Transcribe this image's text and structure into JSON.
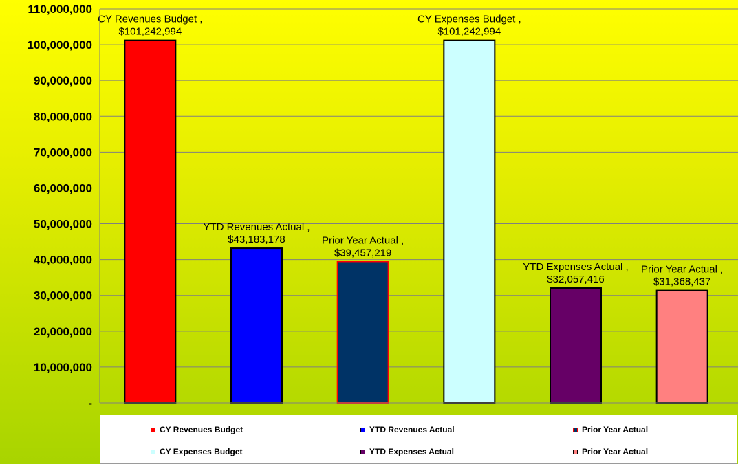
{
  "chart_data": {
    "type": "bar",
    "categories": [
      "CY Revenues Budget",
      "YTD Revenues Actual",
      "Prior Year Actual",
      "CY Expenses Budget",
      "YTD Expenses Actual",
      "Prior Year Actual"
    ],
    "values": [
      101242994,
      43183178,
      39457219,
      101242994,
      32057416,
      31368437
    ],
    "data_labels": [
      [
        "CY Revenues Budget ,",
        "$101,242,994"
      ],
      [
        "YTD Revenues Actual ,",
        "$43,183,178"
      ],
      [
        "Prior Year Actual ,",
        "$39,457,219"
      ],
      [
        "CY Expenses Budget ,",
        "$101,242,994"
      ],
      [
        "YTD Expenses Actual ,",
        "$32,057,416"
      ],
      [
        "Prior Year Actual ,",
        "$31,368,437"
      ]
    ],
    "colors": [
      "#ff0000",
      "#0000ff",
      "#003366",
      "#ccffff",
      "#660066",
      "#ff8080"
    ],
    "bar_borders": [
      "#000000",
      "#000000",
      "#ff0000",
      "#000000",
      "#000000",
      "#000000"
    ],
    "ylim": [
      0,
      110000000
    ],
    "ytick_values": [
      0,
      10000000,
      20000000,
      30000000,
      40000000,
      50000000,
      60000000,
      70000000,
      80000000,
      90000000,
      100000000,
      110000000
    ],
    "ytick_labels": [
      "-",
      "10,000,000",
      "20,000,000",
      "30,000,000",
      "40,000,000",
      "50,000,000",
      "60,000,000",
      "70,000,000",
      "80,000,000",
      "90,000,000",
      "100,000,000",
      "110,000,000"
    ],
    "grid": true,
    "legend_position": "bottom",
    "legend": [
      {
        "label": "CY Revenues Budget",
        "color": "#ff0000",
        "border": "#000000"
      },
      {
        "label": "YTD Revenues Actual",
        "color": "#0000ff",
        "border": "#000000"
      },
      {
        "label": "Prior Year Actual",
        "color": "#003366",
        "border": "#ff0000"
      },
      {
        "label": "CY Expenses Budget",
        "color": "#ccffff",
        "border": "#000000"
      },
      {
        "label": "YTD Expenses Actual",
        "color": "#660066",
        "border": "#000000"
      },
      {
        "label": "Prior Year Actual",
        "color": "#ff8080",
        "border": "#000000"
      }
    ]
  }
}
